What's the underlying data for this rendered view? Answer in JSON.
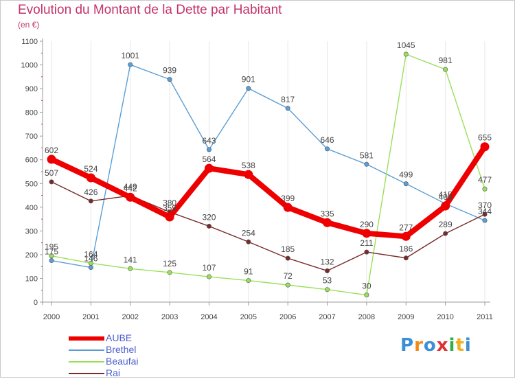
{
  "header": {
    "title": "Evolution du Montant de la Dette par Habitant",
    "subtitle": "(en €)"
  },
  "chart_data": {
    "type": "line",
    "title": "Evolution du Montant de la Dette par Habitant",
    "subtitle": "(en €)",
    "xlabel": "",
    "ylabel": "",
    "x": [
      "2000",
      "2001",
      "2002",
      "2003",
      "2004",
      "2005",
      "2006",
      "2007",
      "2008",
      "2009",
      "2010",
      "2011"
    ],
    "ylim": [
      0,
      1100
    ],
    "yticks": [
      0,
      100,
      200,
      300,
      400,
      500,
      600,
      700,
      800,
      900,
      1000,
      1100
    ],
    "grid": "vertical",
    "legend_position": "bottom-left",
    "series": [
      {
        "name": "AUBE",
        "color": "#ee0000",
        "values": [
          602,
          524,
          442,
          359,
          564,
          538,
          399,
          335,
          290,
          277,
          405,
          655
        ],
        "labels": [
          "602",
          "524",
          "442",
          "359",
          "564",
          "538",
          "399",
          "335",
          "290",
          "277",
          "405",
          "655"
        ]
      },
      {
        "name": "Brethel",
        "color": "#5a9ed6",
        "values": [
          175,
          146,
          1001,
          939,
          643,
          901,
          817,
          646,
          581,
          499,
          415,
          344
        ],
        "labels": [
          "175",
          "146",
          "1001",
          "939",
          "643",
          "901",
          "817",
          "646",
          "581",
          "499",
          "415",
          "344"
        ]
      },
      {
        "name": "Beaufai",
        "color": "#99e05a",
        "values": [
          195,
          164,
          141,
          125,
          107,
          91,
          72,
          53,
          30,
          1045,
          981,
          477
        ],
        "labels": [
          "195",
          "164",
          "141",
          "125",
          "107",
          "91",
          "72",
          "53",
          "30",
          "1045",
          "981",
          "477"
        ]
      },
      {
        "name": "Rai",
        "color": "#7a2a2a",
        "values": [
          507,
          426,
          449,
          380,
          320,
          254,
          185,
          132,
          211,
          186,
          289,
          370
        ],
        "labels": [
          "507",
          "426",
          "449",
          "380",
          "320",
          "254",
          "185",
          "132",
          "211",
          "186",
          "289",
          "370"
        ]
      }
    ]
  },
  "logo": {
    "letters": [
      "P",
      "r",
      "o",
      "x",
      "i",
      "t",
      "i"
    ],
    "colors": [
      "#3a8fd8",
      "#f08a1a",
      "#3a8fd8",
      "#e03030",
      "#2fb04a",
      "#f0b020",
      "#3a8fd8"
    ]
  }
}
